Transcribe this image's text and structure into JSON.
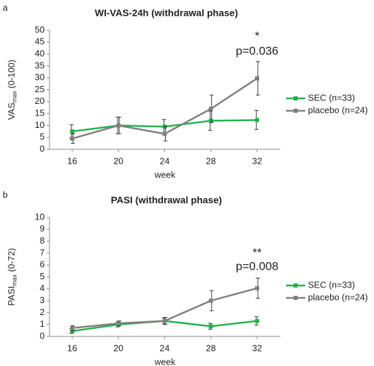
{
  "chart_data": [
    {
      "type": "line",
      "panel": "a",
      "title": "WI-VAS-24h (withdrawal phase)",
      "ylabel": {
        "main": "VAS",
        "sub": "max",
        "rest": " (0-100)"
      },
      "xlabel": "week",
      "categories": [
        "16",
        "20",
        "24",
        "28",
        "32"
      ],
      "ylim": [
        0,
        50
      ],
      "yticks": [
        0,
        5,
        10,
        15,
        20,
        25,
        30,
        35,
        40,
        45,
        50
      ],
      "legend": "right",
      "series": [
        {
          "name": "SEC (n=33)",
          "color": "#22b14c",
          "values": [
            7.5,
            10,
            9.5,
            12,
            12.3
          ],
          "errors": [
            2.8,
            3.5,
            3,
            4,
            4
          ]
        },
        {
          "name": "placebo (n=24)",
          "color": "#7f7f7f",
          "values": [
            4.5,
            10,
            6.5,
            17,
            29.8
          ],
          "errors": [
            2,
            3.5,
            3,
            5.8,
            7
          ]
        }
      ],
      "annotations": [
        "*",
        "p=0.036"
      ]
    },
    {
      "type": "line",
      "panel": "b",
      "title": "PASI (withdrawal phase)",
      "ylabel": {
        "main": "PASI",
        "sub": "max",
        "rest": " (0-72)"
      },
      "xlabel": "week",
      "categories": [
        "16",
        "20",
        "24",
        "28",
        "32"
      ],
      "ylim": [
        0,
        10
      ],
      "yticks": [
        0,
        1,
        2,
        3,
        4,
        5,
        6,
        7,
        8,
        9,
        10
      ],
      "legend": "right",
      "series": [
        {
          "name": "SEC (n=33)",
          "color": "#22b14c",
          "values": [
            0.45,
            1.0,
            1.3,
            0.85,
            1.3
          ],
          "errors": [
            0.2,
            0.2,
            0.25,
            0.25,
            0.35
          ]
        },
        {
          "name": "placebo (n=24)",
          "color": "#7f7f7f",
          "values": [
            0.7,
            1.1,
            1.3,
            3.0,
            4.05
          ],
          "errors": [
            0.2,
            0.2,
            0.3,
            0.85,
            0.85
          ]
        }
      ],
      "annotations": [
        "**",
        "p=0.008"
      ]
    }
  ]
}
